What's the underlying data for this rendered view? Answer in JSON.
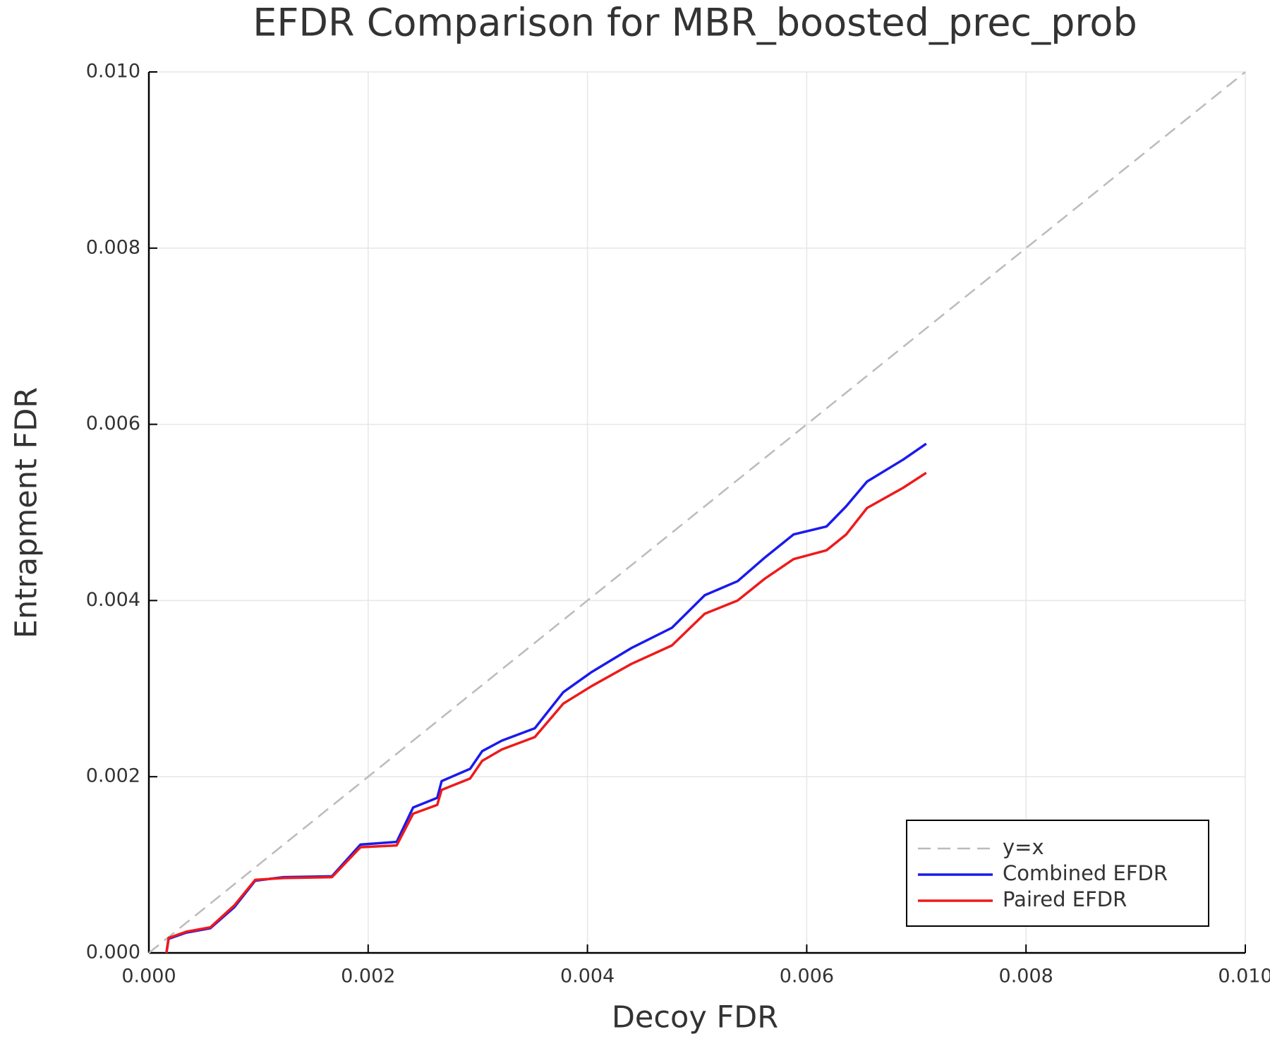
{
  "chart_data": {
    "type": "line",
    "title": "EFDR Comparison for MBR_boosted_prec_prob",
    "x_label": "Decoy FDR",
    "y_label": "Entrapment FDR",
    "xlim": [
      0,
      0.01
    ],
    "ylim": [
      0,
      0.01
    ],
    "xticks": [
      {
        "value": 0,
        "label": "0.000"
      },
      0.002,
      0.004,
      0.006,
      0.008,
      {
        "value": 0.01,
        "label": "0.010"
      }
    ],
    "yticks": [
      {
        "value": 0,
        "label": "0.000"
      },
      0.002,
      0.004,
      0.006,
      0.008,
      {
        "value": 0.01,
        "label": "0.010"
      }
    ],
    "grid": true,
    "legend": "bottom right",
    "series": [
      {
        "name": "y=x",
        "color": "#bbbbbb",
        "dashed": true,
        "x": [
          0,
          0.01
        ],
        "values": [
          0,
          0.01
        ]
      },
      {
        "name": "Combined EFDR",
        "color": "#1a1aee",
        "dashed": false,
        "x": [
          0.00016,
          0.00018,
          0.00034,
          0.00056,
          0.00078,
          0.00097,
          0.00123,
          0.00167,
          0.00193,
          0.00226,
          0.00241,
          0.00263,
          0.00267,
          0.00293,
          0.00304,
          0.00322,
          0.00352,
          0.00378,
          0.00404,
          0.0044,
          0.00477,
          0.00507,
          0.00537,
          0.00562,
          0.00588,
          0.00618,
          0.00636,
          0.00655,
          0.00688,
          0.00709
        ],
        "values": [
          0,
          0.00016,
          0.00023,
          0.00028,
          0.00052,
          0.00082,
          0.00086,
          0.00087,
          0.00123,
          0.00126,
          0.00165,
          0.00176,
          0.00195,
          0.00209,
          0.00229,
          0.00241,
          0.00255,
          0.00296,
          0.00319,
          0.00346,
          0.00369,
          0.00406,
          0.00422,
          0.00449,
          0.00475,
          0.00484,
          0.00507,
          0.00535,
          0.0056,
          0.00578
        ]
      },
      {
        "name": "Paired EFDR",
        "color": "#ee1a1a",
        "dashed": false,
        "x": [
          0.00016,
          0.00018,
          0.00034,
          0.00056,
          0.00078,
          0.00097,
          0.00123,
          0.00167,
          0.00193,
          0.00226,
          0.00241,
          0.00263,
          0.00267,
          0.00293,
          0.00304,
          0.00322,
          0.00352,
          0.00378,
          0.00404,
          0.0044,
          0.00477,
          0.00507,
          0.00537,
          0.00562,
          0.00588,
          0.00618,
          0.00636,
          0.00655,
          0.00688,
          0.00709
        ],
        "values": [
          0,
          0.00017,
          0.00024,
          0.00029,
          0.00054,
          0.00083,
          0.00085,
          0.00086,
          0.0012,
          0.00122,
          0.00158,
          0.00168,
          0.00185,
          0.00198,
          0.00218,
          0.00231,
          0.00245,
          0.00283,
          0.00303,
          0.00328,
          0.00349,
          0.00385,
          0.004,
          0.00425,
          0.00447,
          0.00457,
          0.00475,
          0.00505,
          0.00528,
          0.00545
        ]
      }
    ]
  }
}
